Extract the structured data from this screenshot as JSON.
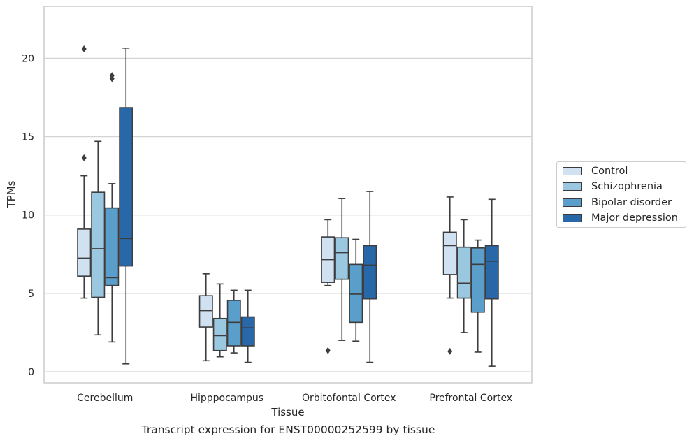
{
  "chart_data": {
    "type": "box",
    "xlabel": "Tissue",
    "ylabel": "TPMs",
    "caption": "Transcript expression for ENST00000252599 by tissue",
    "ylim": [
      -0.7,
      23.6
    ],
    "yticks": [
      0,
      5,
      10,
      15,
      20
    ],
    "grid": "horizontal",
    "legend_position": "right",
    "categories": [
      "Cerebellum",
      "Hipppocampus",
      "Orbitofontal Cortex",
      "Prefrontal Cortex"
    ],
    "series": [
      {
        "name": "Control",
        "color": "#d0e1f2",
        "boxes": [
          {
            "whislo": 4.7,
            "q1": 6.1,
            "med": 7.25,
            "q3": 9.1,
            "whishi": 12.5,
            "fliers": [
              13.65,
              20.6
            ]
          },
          {
            "whislo": 0.7,
            "q1": 2.85,
            "med": 3.9,
            "q3": 4.85,
            "whishi": 6.25,
            "fliers": []
          },
          {
            "whislo": 5.5,
            "q1": 5.7,
            "med": 7.15,
            "q3": 8.6,
            "whishi": 9.7,
            "fliers": [
              1.35
            ]
          },
          {
            "whislo": 4.7,
            "q1": 6.2,
            "med": 8.05,
            "q3": 8.9,
            "whishi": 11.15,
            "fliers": [
              1.3
            ]
          }
        ]
      },
      {
        "name": "Schizophrenia",
        "color": "#9ac8e0",
        "boxes": [
          {
            "whislo": 2.35,
            "q1": 4.75,
            "med": 7.85,
            "q3": 11.45,
            "whishi": 14.7,
            "fliers": []
          },
          {
            "whislo": 0.95,
            "q1": 1.35,
            "med": 2.3,
            "q3": 3.4,
            "whishi": 5.6,
            "fliers": []
          },
          {
            "whislo": 2.0,
            "q1": 5.9,
            "med": 7.6,
            "q3": 8.55,
            "whishi": 11.05,
            "fliers": []
          },
          {
            "whislo": 2.5,
            "q1": 4.7,
            "med": 5.65,
            "q3": 7.95,
            "whishi": 9.7,
            "fliers": []
          }
        ]
      },
      {
        "name": "Bipolar disorder",
        "color": "#5a9fcc",
        "boxes": [
          {
            "whislo": 1.9,
            "q1": 5.5,
            "med": 6.0,
            "q3": 10.45,
            "whishi": 12.0,
            "fliers": [
              18.7,
              18.9
            ]
          },
          {
            "whislo": 1.2,
            "q1": 1.65,
            "med": 3.15,
            "q3": 4.55,
            "whishi": 5.2,
            "fliers": []
          },
          {
            "whislo": 1.95,
            "q1": 3.15,
            "med": 4.95,
            "q3": 6.85,
            "whishi": 8.45,
            "fliers": []
          },
          {
            "whislo": 1.25,
            "q1": 3.8,
            "med": 6.85,
            "q3": 7.9,
            "whishi": 8.4,
            "fliers": []
          }
        ]
      },
      {
        "name": "Major depression",
        "color": "#2867a8",
        "boxes": [
          {
            "whislo": 0.5,
            "q1": 6.75,
            "med": 8.5,
            "q3": 16.85,
            "whishi": 20.65,
            "fliers": []
          },
          {
            "whislo": 0.6,
            "q1": 1.65,
            "med": 2.8,
            "q3": 3.5,
            "whishi": 5.2,
            "fliers": []
          },
          {
            "whislo": 0.6,
            "q1": 4.65,
            "med": 6.8,
            "q3": 8.05,
            "whishi": 11.5,
            "fliers": []
          },
          {
            "whislo": 0.35,
            "q1": 4.65,
            "med": 7.05,
            "q3": 8.05,
            "whishi": 11.0,
            "fliers": []
          }
        ]
      }
    ]
  }
}
